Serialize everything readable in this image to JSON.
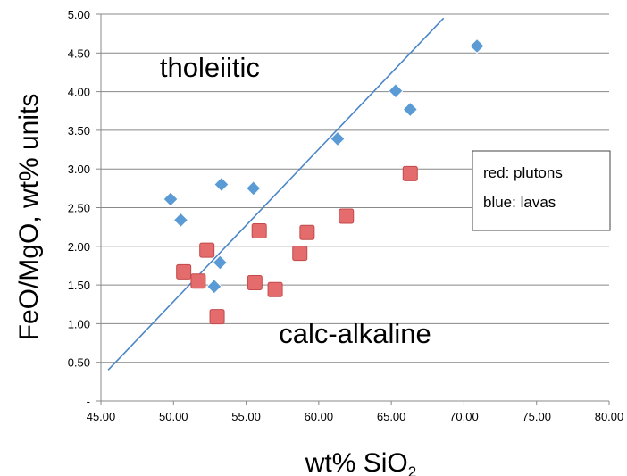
{
  "chart_data": {
    "type": "scatter",
    "title": "",
    "xlabel": "wt% SiO",
    "xlabel_subscript": "2",
    "ylabel": "FeO/MgO, wt% units",
    "xlim": [
      45,
      80
    ],
    "ylim": [
      0,
      5
    ],
    "x_ticks": [
      45,
      50,
      55,
      60,
      65,
      70,
      75,
      80
    ],
    "y_ticks": [
      0,
      0.5,
      1,
      1.5,
      2,
      2.5,
      3,
      3.5,
      4,
      4.5,
      5
    ],
    "x_tick_labels": [
      "45.00",
      "50.00",
      "55.00",
      "60.00",
      "65.00",
      "70.00",
      "75.00",
      "80.00"
    ],
    "y_tick_labels": [
      "-",
      "0.50",
      "1.00",
      "1.50",
      "2.00",
      "2.50",
      "3.00",
      "3.50",
      "4.00",
      "4.50",
      "5.00"
    ],
    "grid": "horizontal",
    "series": [
      {
        "color": "#5b9bd5",
        "marker": "diamond",
        "points": [
          [
            49.8,
            2.61
          ],
          [
            50.5,
            2.34
          ],
          [
            53.3,
            2.8
          ],
          [
            55.5,
            2.75
          ],
          [
            53.2,
            1.79
          ],
          [
            52.8,
            1.48
          ],
          [
            61.3,
            3.39
          ],
          [
            65.3,
            4.01
          ],
          [
            66.3,
            3.77
          ],
          [
            70.9,
            4.59
          ]
        ]
      },
      {
        "color": "#e46c6c",
        "marker": "square",
        "points": [
          [
            50.7,
            1.67
          ],
          [
            51.7,
            1.55
          ],
          [
            52.3,
            1.95
          ],
          [
            53.0,
            1.09
          ],
          [
            55.6,
            1.53
          ],
          [
            55.9,
            2.2
          ],
          [
            57.0,
            1.44
          ],
          [
            58.7,
            1.91
          ],
          [
            59.2,
            2.18
          ],
          [
            61.9,
            2.39
          ],
          [
            66.3,
            2.94
          ]
        ]
      }
    ],
    "divider_line": {
      "color": "#4a86c8",
      "points": [
        [
          45.5,
          0.4
        ],
        [
          68.6,
          4.95
        ]
      ]
    },
    "annotations": [
      {
        "text": "tholeiitic",
        "x": 52.5,
        "y": 4.19
      },
      {
        "text": "calc-alkaline",
        "x": 62.5,
        "y": 0.75
      }
    ],
    "legend": {
      "placement": "right",
      "lines": [
        "red: plutons",
        "blue: lavas"
      ]
    }
  }
}
